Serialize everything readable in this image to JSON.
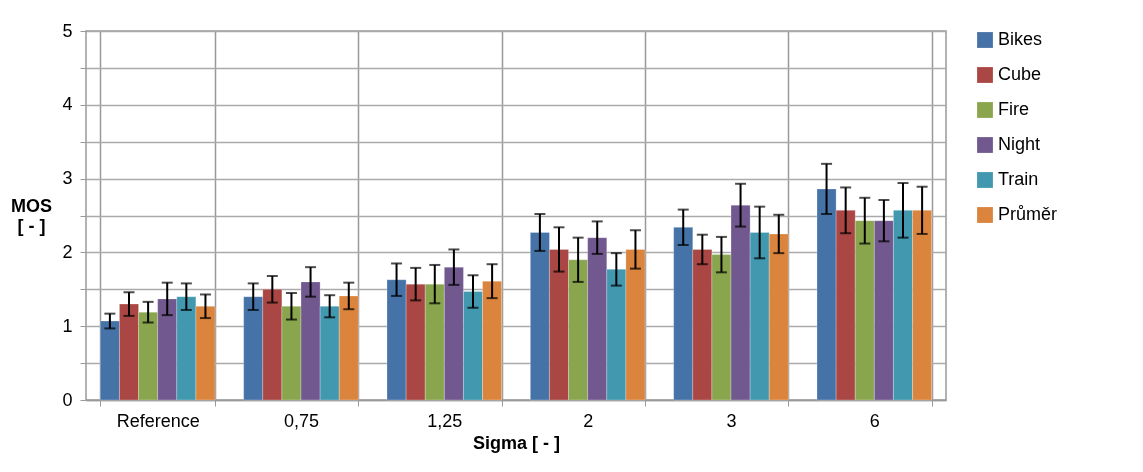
{
  "chart_data": {
    "type": "bar",
    "xlabel": "Sigma [ - ]",
    "ylabel": "MOS [ - ]",
    "categories": [
      "Reference",
      "0,75",
      "1,25",
      "2",
      "3",
      "6"
    ],
    "series": [
      {
        "name": "Bikes",
        "color": "#4572a7",
        "values": [
          1.07,
          1.4,
          1.63,
          2.27,
          2.34,
          2.86
        ],
        "errors": [
          0.1,
          0.18,
          0.22,
          0.25,
          0.24,
          0.34
        ]
      },
      {
        "name": "Cube",
        "color": "#aa4643",
        "values": [
          1.3,
          1.5,
          1.57,
          2.04,
          2.04,
          2.57
        ],
        "errors": [
          0.16,
          0.18,
          0.22,
          0.3,
          0.2,
          0.31
        ]
      },
      {
        "name": "Fire",
        "color": "#89a54e",
        "values": [
          1.19,
          1.27,
          1.57,
          1.9,
          1.97,
          2.43
        ],
        "errors": [
          0.14,
          0.18,
          0.26,
          0.3,
          0.24,
          0.31
        ]
      },
      {
        "name": "Night",
        "color": "#71588f",
        "values": [
          1.37,
          1.6,
          1.8,
          2.2,
          2.64,
          2.43
        ],
        "errors": [
          0.22,
          0.2,
          0.24,
          0.22,
          0.29,
          0.28
        ]
      },
      {
        "name": "Train",
        "color": "#4198af",
        "values": [
          1.4,
          1.27,
          1.47,
          1.77,
          2.27,
          2.57
        ],
        "errors": [
          0.18,
          0.15,
          0.22,
          0.22,
          0.35,
          0.37
        ]
      },
      {
        "name": "Průměr",
        "color": "#db843d",
        "values": [
          1.27,
          1.41,
          1.61,
          2.04,
          2.25,
          2.57
        ],
        "errors": [
          0.16,
          0.18,
          0.23,
          0.26,
          0.26,
          0.32
        ]
      }
    ],
    "ylim": [
      0,
      5
    ],
    "yticks": [
      0,
      {
        "value": 0.5,
        "label": null
      },
      1,
      {
        "value": 1.5,
        "label": null
      },
      2,
      {
        "value": 2.5,
        "label": null
      },
      3,
      {
        "value": 3.5,
        "label": null
      },
      4,
      {
        "value": 4.5,
        "label": null
      },
      5
    ],
    "grid": true,
    "legend": "right"
  }
}
